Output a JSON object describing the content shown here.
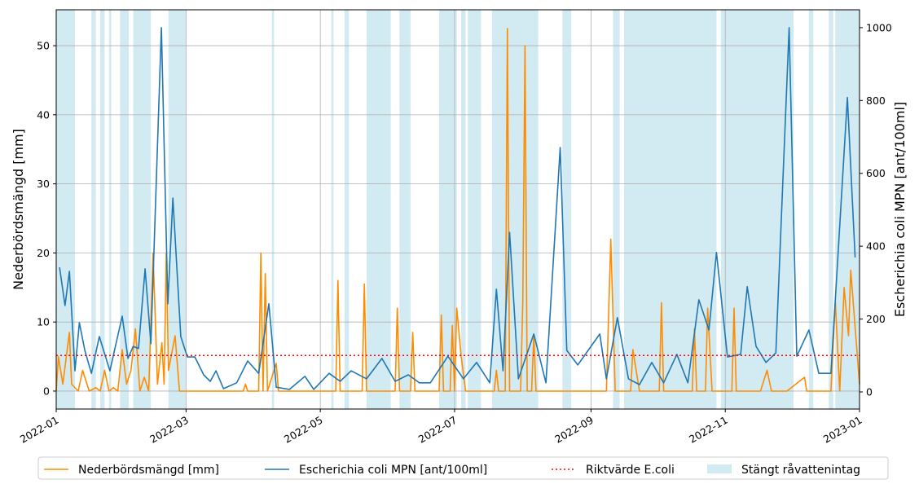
{
  "chart_data": {
    "type": "line",
    "xlim": [
      0,
      365
    ],
    "xticks": [
      {
        "value": 0,
        "label": "2022-01"
      },
      {
        "value": 59,
        "label": "2022-03"
      },
      {
        "value": 120,
        "label": "2022-05"
      },
      {
        "value": 181,
        "label": "2022-07"
      },
      {
        "value": 243,
        "label": "2022-09"
      },
      {
        "value": 304,
        "label": "2022-11"
      },
      {
        "value": 365,
        "label": "2023-01"
      }
    ],
    "ylim": [
      -2.6,
      55.2
    ],
    "yticks": [
      0,
      10,
      20,
      30,
      40,
      50
    ],
    "y2lim": [
      -47,
      1049
    ],
    "y2ticks": [
      0,
      200,
      400,
      600,
      800,
      1000
    ],
    "ylabel": "Nederbördsmängd [mm]",
    "y2label": "Escherichia coli MPN [ant/100ml]",
    "grid": true,
    "legend": "lower center",
    "series": [
      {
        "name": "Nederbördsmängd [mm]",
        "color": "#ff8c00",
        "x": [
          0,
          1,
          3,
          6,
          7,
          10,
          12,
          15,
          18,
          20,
          22,
          24,
          26,
          28,
          30,
          32,
          34,
          36,
          38,
          40,
          42,
          44,
          46,
          48,
          49,
          50,
          51,
          54,
          56,
          60,
          85,
          86,
          87,
          92,
          93,
          94,
          95,
          96,
          100,
          101,
          127,
          128,
          129,
          139,
          140,
          141,
          154,
          155,
          156,
          161,
          162,
          163,
          174,
          175,
          176,
          179,
          180,
          181,
          182,
          184,
          186,
          199,
          200,
          201,
          204,
          205,
          206,
          211,
          212,
          213,
          214,
          216,
          217,
          218,
          250,
          252,
          254,
          261,
          262,
          265,
          274,
          275,
          276,
          289,
          290,
          291,
          295,
          296,
          298,
          307,
          308,
          309,
          320,
          323,
          325,
          332,
          340,
          341,
          352,
          354,
          356,
          358,
          360,
          361,
          365
        ],
        "values": [
          0,
          5,
          1,
          8.5,
          1,
          0,
          3,
          0,
          0.5,
          0,
          3,
          0,
          0.5,
          0,
          6,
          1,
          3,
          9,
          0,
          2,
          0,
          20,
          1,
          7,
          1,
          20,
          3,
          8,
          0,
          0,
          0,
          1,
          0,
          0,
          20,
          0,
          17,
          0,
          4,
          0,
          0,
          16,
          0,
          0,
          15.5,
          0,
          0,
          12,
          0,
          0,
          8.5,
          0,
          0,
          11,
          0,
          0,
          9.5,
          0,
          12,
          5,
          0,
          0,
          3,
          0,
          0,
          52.5,
          0,
          0,
          13,
          50,
          0,
          0,
          8,
          0,
          0,
          22,
          0,
          0,
          6,
          0,
          0,
          12.8,
          0,
          0,
          9,
          0,
          0,
          12,
          0,
          0,
          12,
          0,
          0,
          3,
          0,
          0,
          2,
          0,
          0,
          13,
          0,
          15,
          8,
          17.5,
          1
        ]
      },
      {
        "name": "Escherichia coli MPN [ant/100ml]",
        "color": "#1f77b4",
        "axis": "y2",
        "x": [
          1.5,
          4,
          6,
          8.5,
          10.5,
          13,
          16,
          19.6,
          24.4,
          30,
          32.6,
          35,
          37.4,
          40.4,
          43,
          47.8,
          50.7,
          53,
          56.6,
          59.6,
          63,
          67,
          70,
          72.6,
          76,
          82,
          87,
          92,
          96.6,
          100,
          106,
          113,
          117,
          124,
          129,
          134,
          141,
          148,
          154,
          160,
          165,
          170,
          178,
          185,
          191,
          197,
          200,
          203,
          206,
          210,
          217,
          222.5,
          229,
          232,
          237,
          247,
          250,
          255,
          260,
          265,
          270.6,
          276,
          282,
          287,
          292,
          296.6,
          300,
          305,
          311,
          314,
          318,
          322.5,
          327,
          333,
          336.5,
          342,
          346.5,
          352,
          359.5,
          363
        ],
        "values": [
          342,
          237,
          331,
          58,
          190,
          114,
          51,
          152,
          58,
          208,
          92,
          125,
          119,
          338,
          132,
          1000,
          242,
          532,
          152,
          96,
          96,
          47,
          29,
          58,
          9,
          25,
          85,
          51,
          242,
          13,
          7,
          43,
          7,
          51,
          29,
          58,
          36,
          92,
          29,
          47,
          25,
          25,
          98,
          36,
          81,
          25,
          282,
          58,
          438,
          36,
          159,
          25,
          671,
          114,
          74,
          159,
          36,
          204,
          36,
          20,
          81,
          25,
          103,
          25,
          253,
          170,
          383,
          96,
          103,
          289,
          125,
          81,
          107,
          1000,
          98,
          170,
          51,
          51,
          808,
          369
        ]
      }
    ],
    "threshold": {
      "name": "Riktvärde E.coli",
      "value": 100,
      "axis": "y2",
      "color": "#ff0000"
    },
    "closed": {
      "name": "Stängt råvattenintag",
      "color": "#add8e6",
      "spans": [
        [
          0,
          8.5
        ],
        [
          16,
          18
        ],
        [
          20,
          22
        ],
        [
          24,
          25
        ],
        [
          29,
          33
        ],
        [
          35,
          43
        ],
        [
          51,
          59
        ],
        [
          98,
          99
        ],
        [
          125,
          126
        ],
        [
          131,
          133
        ],
        [
          141,
          152
        ],
        [
          156,
          161
        ],
        [
          174,
          182
        ],
        [
          184,
          186
        ],
        [
          187,
          193
        ],
        [
          198,
          219
        ],
        [
          230,
          234
        ],
        [
          253,
          256
        ],
        [
          258,
          300
        ],
        [
          302,
          335
        ],
        [
          342,
          344
        ],
        [
          351,
          353
        ],
        [
          354,
          365
        ]
      ]
    }
  }
}
